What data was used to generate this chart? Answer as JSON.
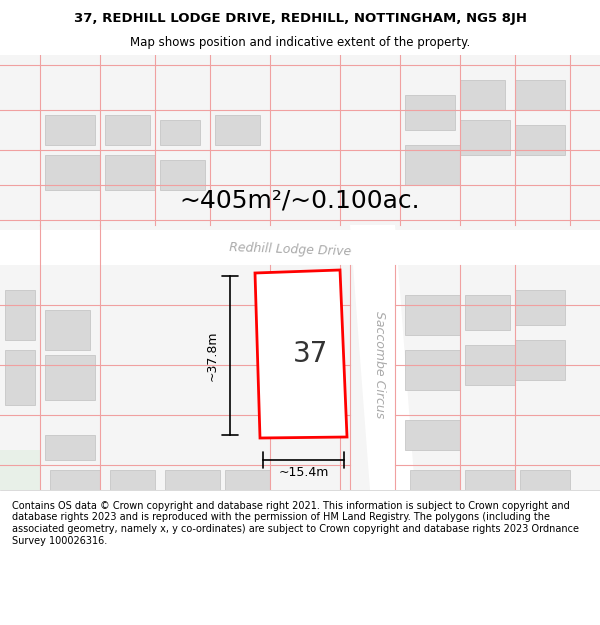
{
  "title_line1": "37, REDHILL LODGE DRIVE, REDHILL, NOTTINGHAM, NG5 8JH",
  "title_line2": "Map shows position and indicative extent of the property.",
  "area_label": "~405m²/~0.100ac.",
  "street_label_1": "Redhill Lodge Drive",
  "street_label_2": "Saccombe Circus",
  "property_number": "37",
  "dim_height": "~37.8m",
  "dim_width": "~15.4m",
  "footer_text": "Contains OS data © Crown copyright and database right 2021. This information is subject to Crown copyright and database rights 2023 and is reproduced with the permission of HM Land Registry. The polygons (including the associated geometry, namely x, y co-ordinates) are subject to Crown copyright and database rights 2023 Ordnance Survey 100026316.",
  "map_bg": "#f5f5f5",
  "road_color": "#ffffff",
  "plot_outline_color": "#ff0000",
  "plot_fill_color": "#ffffff",
  "building_fill": "#d8d8d8",
  "grid_line_color": "#f0a0a0",
  "title_bg": "#ffffff",
  "footer_bg": "#ffffff"
}
